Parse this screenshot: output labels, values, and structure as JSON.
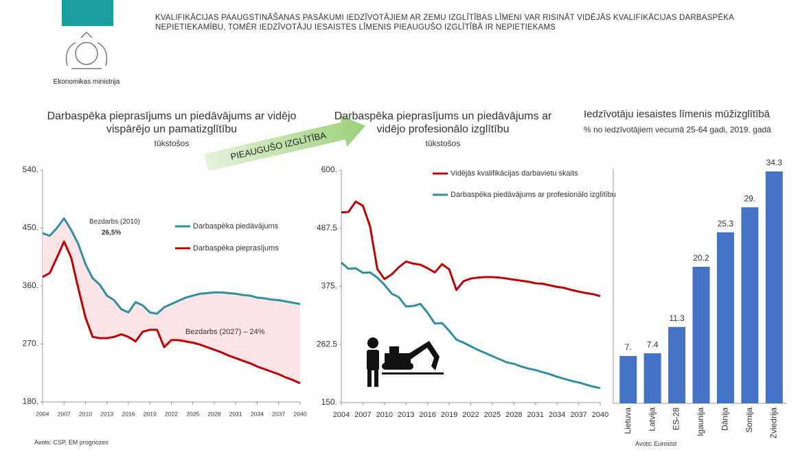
{
  "header": {
    "logo_caption": "Ekonomikas ministrija",
    "title": "KVALIFIKĀCIJAS PAAUGSTINĀŠANAS PASĀKUMI IEDZĪVOTĀJIEM AR ZEMU IZGLĪTĪBAS LĪMENI VAR RISINĀT VIDĒJĀS KVALIFIKĀCIJAS DARBASPĒKA NEPIETIEKAMĪBU, TOMĒR IEDZĪVOTĀJU IESAISTES LĪMENIS PIEAUGUŠO IZGLĪTĪBĀ IR NEPIETIEKAMS"
  },
  "arrow_label": "PIEAUGUŠO IZGLĪTĪBA",
  "chart_data": [
    {
      "type": "line",
      "title": "Darbaspēka pieprasījums un piedāvājums ar vidējo vispārējo un pamatizglītību",
      "subtitle": "tūkstošos",
      "source": "Avots: CSP, EM prognozes",
      "annotations": [
        "Bezdarbs (2010)",
        "26,5%",
        "Bezdarbs (2027) – 24%"
      ],
      "x": [
        2004,
        2005,
        2006,
        2007,
        2008,
        2009,
        2010,
        2011,
        2012,
        2013,
        2014,
        2015,
        2016,
        2017,
        2018,
        2019,
        2020,
        2021,
        2022,
        2023,
        2024,
        2025,
        2026,
        2027,
        2028,
        2029,
        2030,
        2031,
        2032,
        2033,
        2034,
        2035,
        2036,
        2037,
        2038,
        2039,
        2040
      ],
      "xlim": [
        2004,
        2040
      ],
      "xticks": [
        2004,
        2007,
        2010,
        2013,
        2016,
        2019,
        2022,
        2025,
        2028,
        2031,
        2034,
        2037,
        2040
      ],
      "ylim": [
        180,
        540
      ],
      "yticks": [
        {
          "value": 540,
          "label": "540."
        },
        {
          "value": 450,
          "label": "450."
        },
        {
          "value": 360,
          "label": "360."
        },
        {
          "value": 270,
          "label": "270."
        },
        {
          "value": 180,
          "label": "180."
        }
      ],
      "series": [
        {
          "name": "Darbaspēka piedāvājums",
          "color": "#2e8fa3",
          "values": [
            442,
            438,
            450,
            465,
            447,
            425,
            394,
            372,
            362,
            345,
            338,
            324,
            319,
            335,
            330,
            319,
            317,
            327,
            332,
            337,
            342,
            345,
            348,
            349,
            350,
            350,
            349,
            348,
            346,
            345,
            342,
            341,
            339,
            338,
            336,
            334,
            332
          ]
        },
        {
          "name": "Darbaspēka pieprasījums",
          "color": "#c00000",
          "values": [
            374,
            380,
            404,
            429,
            404,
            356,
            311,
            281,
            279,
            279,
            281,
            285,
            281,
            274,
            289,
            292,
            292,
            265,
            276,
            276,
            274,
            272,
            269,
            265,
            261,
            257,
            252,
            248,
            244,
            240,
            235,
            231,
            227,
            223,
            218,
            214,
            209
          ]
        }
      ]
    },
    {
      "type": "line",
      "title": "Darbaspēka pieprasījums un piedāvājums ar vidējo profesionālo izglītību",
      "subtitle": "tūkstošos",
      "x": [
        2004,
        2005,
        2006,
        2007,
        2008,
        2009,
        2010,
        2011,
        2012,
        2013,
        2014,
        2015,
        2016,
        2017,
        2018,
        2019,
        2020,
        2021,
        2022,
        2023,
        2024,
        2025,
        2026,
        2027,
        2028,
        2029,
        2030,
        2031,
        2032,
        2033,
        2034,
        2035,
        2036,
        2037,
        2038,
        2039,
        2040
      ],
      "xlim": [
        2004,
        2040
      ],
      "xticks": [
        2004,
        2007,
        2010,
        2013,
        2016,
        2019,
        2022,
        2025,
        2028,
        2031,
        2034,
        2037,
        2040
      ],
      "ylim": [
        150,
        600
      ],
      "yticks": [
        {
          "value": 600,
          "label": "600."
        },
        487.5,
        {
          "value": 375,
          "label": "375."
        },
        262.5,
        {
          "value": 150,
          "label": "150."
        }
      ],
      "series": [
        {
          "name": "Vidējās kvalifikācijas darbavietu skaits",
          "color": "#c00000",
          "values": [
            518,
            519,
            539,
            531,
            491,
            409,
            389,
            398,
            412,
            423,
            419,
            417,
            410,
            402,
            418,
            408,
            368,
            385,
            390,
            392,
            393,
            393,
            392,
            390,
            388,
            386,
            384,
            381,
            380,
            377,
            374,
            372,
            368,
            365,
            362,
            360,
            356
          ]
        },
        {
          "name": "Darbaspēka piedāvājums ar profesionālo izglītību",
          "color": "#2e8fa3",
          "values": [
            421,
            409,
            410,
            401,
            402,
            392,
            378,
            361,
            354,
            336,
            337,
            341,
            324,
            303,
            304,
            289,
            272,
            266,
            259,
            252,
            246,
            240,
            234,
            228,
            225,
            220,
            216,
            213,
            209,
            205,
            200,
            196,
            192,
            189,
            185,
            181,
            178
          ]
        }
      ]
    },
    {
      "type": "bar",
      "title": "Iedzīvotāju iesaistes līmenis mūžizglītībā",
      "subtitle": "% no iedzīvotājiem vecumā 25-64 gadi, 2019. gadā",
      "source": "Avots: Eurostst",
      "color": "#4472c4",
      "categories": [
        "Lietuva",
        "Latvija",
        "ES-28",
        "Igaunija",
        "Dānija",
        "Somija",
        "Zviedrija"
      ],
      "values": [
        7,
        7.4,
        11.3,
        20.2,
        25.3,
        29,
        34.3
      ],
      "value_labels": [
        "7.",
        "7.4",
        "11.3",
        "20.2",
        "25.3",
        "29.",
        "34.3"
      ]
    }
  ]
}
